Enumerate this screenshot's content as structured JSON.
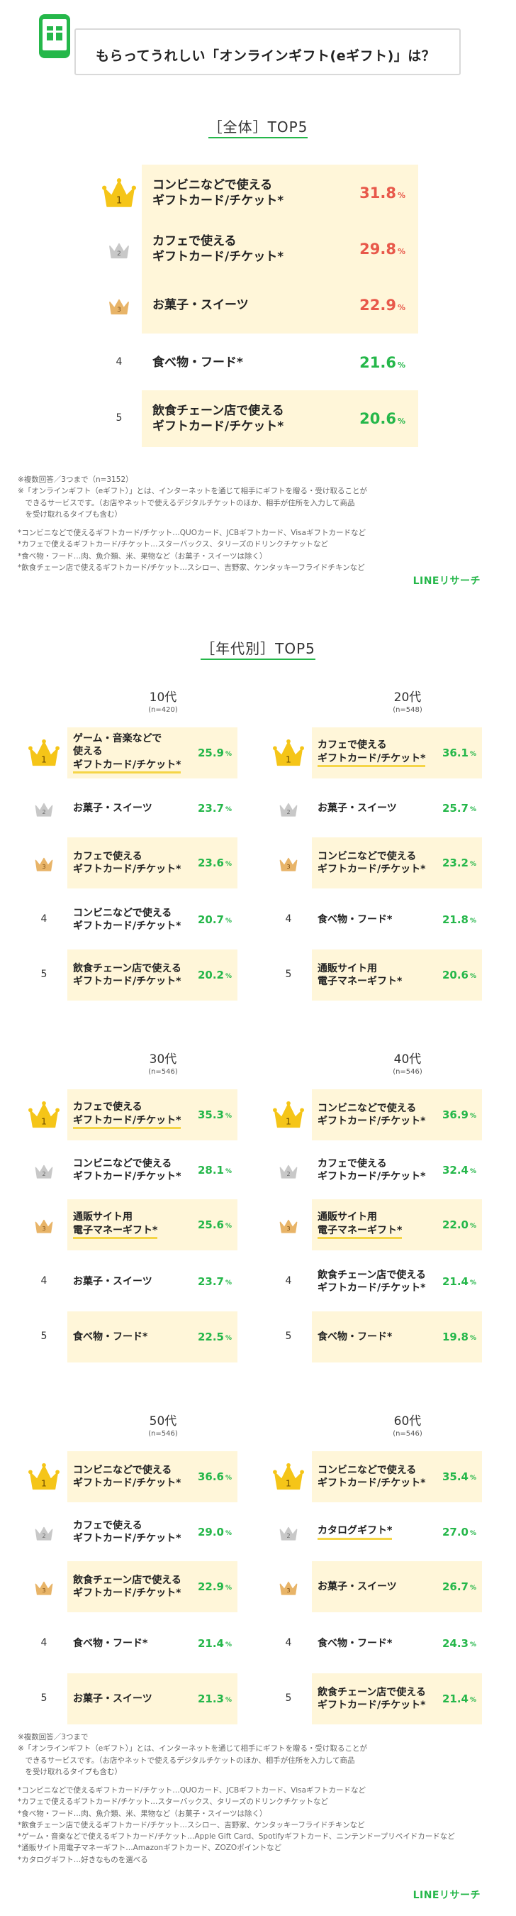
{
  "header": {
    "title": "もらってうれしい「オンラインギフト(eギフト)」は？"
  },
  "colors": {
    "accent_green": "#25b74a",
    "value_red": "#e8584a",
    "value_green": "#25b74a",
    "row_bg": "#fff6d9",
    "gold": "#f5c518",
    "silver": "#c8c8c8",
    "bronze": "#e8b468"
  },
  "overall": {
    "title": "［全体］TOP5",
    "rows": [
      {
        "rank": "1",
        "label": "コンビニなどで使える\nギフトカード/チケット*",
        "value": "31.8",
        "unit": "%"
      },
      {
        "rank": "2",
        "label": "カフェで使える\nギフトカード/チケット*",
        "value": "29.8",
        "unit": "%"
      },
      {
        "rank": "3",
        "label": "お菓子・スイーツ",
        "value": "22.9",
        "unit": "%"
      },
      {
        "rank": "4",
        "label": "食べ物・フード*",
        "value": "21.6",
        "unit": "%"
      },
      {
        "rank": "5",
        "label": "飲食チェーン店で使える\nギフトカード/チケット*",
        "value": "20.6",
        "unit": "%"
      }
    ]
  },
  "notes1": [
    "※複数回答／3つまで（n=3152）",
    "※「オンラインギフト（eギフト）」とは、インターネットを通じて相手にギフトを贈る・受け取ることが\n　できるサービスです。（お店やネットで使えるデジタルチケットのほか、相手が住所を入力して商品\n　を受け取れるタイプも含む）",
    "*コンビニなどで使えるギフトカード/チケット…QUOカード、JCBギフトカード、Visaギフトカードなど\n*カフェで使えるギフトカード/チケット…スターバックス、タリーズのドリンクチケットなど\n*食べ物・フード…肉、魚介類、米、果物など（お菓子・スイーツは除く）\n*飲食チェーン店で使えるギフトカード/チケット…スシロー、吉野家、ケンタッキーフライドチキンなど"
  ],
  "brand": "LINEリサーチ",
  "by_age": {
    "title": "［年代別］TOP5",
    "groups": [
      {
        "age": "10代",
        "n": "(n=420)",
        "rows": [
          {
            "rank": "1",
            "label": "ゲーム・音楽などで\n使える\nギフトカード/チケット*",
            "value": "25.9",
            "unit": "%"
          },
          {
            "rank": "2",
            "label": "お菓子・スイーツ",
            "value": "23.7",
            "unit": "%"
          },
          {
            "rank": "3",
            "label": "カフェで使える\nギフトカード/チケット*",
            "value": "23.6",
            "unit": "%"
          },
          {
            "rank": "4",
            "label": "コンビニなどで使える\nギフトカード/チケット*",
            "value": "20.7",
            "unit": "%"
          },
          {
            "rank": "5",
            "label": "飲食チェーン店で使える\nギフトカード/チケット*",
            "value": "20.2",
            "unit": "%"
          }
        ]
      },
      {
        "age": "20代",
        "n": "(n=548)",
        "rows": [
          {
            "rank": "1",
            "label": "カフェで使える\nギフトカード/チケット*",
            "value": "36.1",
            "unit": "%"
          },
          {
            "rank": "2",
            "label": "お菓子・スイーツ",
            "value": "25.7",
            "unit": "%"
          },
          {
            "rank": "3",
            "label": "コンビニなどで使える\nギフトカード/チケット*",
            "value": "23.2",
            "unit": "%"
          },
          {
            "rank": "4",
            "label": "食べ物・フード*",
            "value": "21.8",
            "unit": "%"
          },
          {
            "rank": "5",
            "label": "通販サイト用\n電子マネーギフト*",
            "value": "20.6",
            "unit": "%"
          }
        ]
      },
      {
        "age": "30代",
        "n": "(n=546)",
        "rows": [
          {
            "rank": "1",
            "label": "カフェで使える\nギフトカード/チケット*",
            "value": "35.3",
            "unit": "%"
          },
          {
            "rank": "2",
            "label": "コンビニなどで使える\nギフトカード/チケット*",
            "value": "28.1",
            "unit": "%"
          },
          {
            "rank": "3",
            "label": "通販サイト用\n電子マネーギフト*",
            "value": "25.6",
            "unit": "%"
          },
          {
            "rank": "4",
            "label": "お菓子・スイーツ",
            "value": "23.7",
            "unit": "%"
          },
          {
            "rank": "5",
            "label": "食べ物・フード*",
            "value": "22.5",
            "unit": "%"
          }
        ]
      },
      {
        "age": "40代",
        "n": "(n=546)",
        "rows": [
          {
            "rank": "1",
            "label": "コンビニなどで使える\nギフトカード/チケット*",
            "value": "36.9",
            "unit": "%"
          },
          {
            "rank": "2",
            "label": "カフェで使える\nギフトカード/チケット*",
            "value": "32.4",
            "unit": "%"
          },
          {
            "rank": "3",
            "label": "通販サイト用\n電子マネーギフト*",
            "value": "22.0",
            "unit": "%"
          },
          {
            "rank": "4",
            "label": "飲食チェーン店で使える\nギフトカード/チケット*",
            "value": "21.4",
            "unit": "%"
          },
          {
            "rank": "5",
            "label": "食べ物・フード*",
            "value": "19.8",
            "unit": "%"
          }
        ]
      },
      {
        "age": "50代",
        "n": "(n=546)",
        "rows": [
          {
            "rank": "1",
            "label": "コンビニなどで使える\nギフトカード/チケット*",
            "value": "36.6",
            "unit": "%"
          },
          {
            "rank": "2",
            "label": "カフェで使える\nギフトカード/チケット*",
            "value": "29.0",
            "unit": "%"
          },
          {
            "rank": "3",
            "label": "飲食チェーン店で使える\nギフトカード/チケット*",
            "value": "22.9",
            "unit": "%"
          },
          {
            "rank": "4",
            "label": "食べ物・フード*",
            "value": "21.4",
            "unit": "%"
          },
          {
            "rank": "5",
            "label": "お菓子・スイーツ",
            "value": "21.3",
            "unit": "%"
          }
        ]
      },
      {
        "age": "60代",
        "n": "(n=546)",
        "rows": [
          {
            "rank": "1",
            "label": "コンビニなどで使える\nギフトカード/チケット*",
            "value": "35.4",
            "unit": "%"
          },
          {
            "rank": "2",
            "label": "カタログギフト*",
            "value": "27.0",
            "unit": "%"
          },
          {
            "rank": "3",
            "label": "お菓子・スイーツ",
            "value": "26.7",
            "unit": "%"
          },
          {
            "rank": "4",
            "label": "食べ物・フード*",
            "value": "24.3",
            "unit": "%"
          },
          {
            "rank": "5",
            "label": "飲食チェーン店で使える\nギフトカード/チケット*",
            "value": "21.4",
            "unit": "%"
          }
        ]
      }
    ]
  },
  "notes2": [
    "※複数回答／3つまで",
    "※「オンラインギフト（eギフト）」とは、インターネットを通じて相手にギフトを贈る・受け取ることが\n　できるサービスです。（お店やネットで使えるデジタルチケットのほか、相手が住所を入力して商品\n　を受け取れるタイプも含む）",
    "*コンビニなどで使えるギフトカード/チケット…QUOカード、JCBギフトカード、Visaギフトカードなど\n*カフェで使えるギフトカード/チケット…スターバックス、タリーズのドリンクチケットなど\n*食べ物・フード…肉、魚介類、米、果物など（お菓子・スイーツは除く）\n*飲食チェーン店で使えるギフトカード/チケット…スシロー、吉野家、ケンタッキーフライドチキンなど\n*ゲーム・音楽などで使えるギフトカード/チケット…Apple Gift Card、Spotifyギフトカード、ニンテンドープリペイドカードなど\n*通販サイト用電子マネーギフト…Amazonギフトカード、ZOZOポイントなど\n*カタログギフト…好きなものを選べる"
  ],
  "chart_data": [
    {
      "type": "table",
      "title": "［全体］TOP5",
      "categories": [
        "コンビニなどで使えるギフトカード/チケット*",
        "カフェで使えるギフトカード/チケット*",
        "お菓子・スイーツ",
        "食べ物・フード*",
        "飲食チェーン店で使えるギフトカード/チケット*"
      ],
      "values": [
        31.8,
        29.8,
        22.9,
        21.6,
        20.6
      ]
    },
    {
      "type": "table",
      "title": "10代",
      "categories": [
        "ゲーム・音楽などで使えるギフトカード/チケット*",
        "お菓子・スイーツ",
        "カフェで使えるギフトカード/チケット*",
        "コンビニなどで使えるギフトカード/チケット*",
        "飲食チェーン店で使えるギフトカード/チケット*"
      ],
      "values": [
        25.9,
        23.7,
        23.6,
        20.7,
        20.2
      ]
    },
    {
      "type": "table",
      "title": "20代",
      "categories": [
        "カフェで使えるギフトカード/チケット*",
        "お菓子・スイーツ",
        "コンビニなどで使えるギフトカード/チケット*",
        "食べ物・フード*",
        "通販サイト用電子マネーギフト*"
      ],
      "values": [
        36.1,
        25.7,
        23.2,
        21.8,
        20.6
      ]
    },
    {
      "type": "table",
      "title": "30代",
      "categories": [
        "カフェで使えるギフトカード/チケット*",
        "コンビニなどで使えるギフトカード/チケット*",
        "通販サイト用電子マネーギフト*",
        "お菓子・スイーツ",
        "食べ物・フード*"
      ],
      "values": [
        35.3,
        28.1,
        25.6,
        23.7,
        22.5
      ]
    },
    {
      "type": "table",
      "title": "40代",
      "categories": [
        "コンビニなどで使えるギフトカード/チケット*",
        "カフェで使えるギフトカード/チケット*",
        "通販サイト用電子マネーギフト*",
        "飲食チェーン店で使えるギフトカード/チケット*",
        "食べ物・フード*"
      ],
      "values": [
        36.9,
        32.4,
        22.0,
        21.4,
        19.8
      ]
    },
    {
      "type": "table",
      "title": "50代",
      "categories": [
        "コンビニなどで使えるギフトカード/チケット*",
        "カフェで使えるギフトカード/チケット*",
        "飲食チェーン店で使えるギフトカード/チケット*",
        "食べ物・フード*",
        "お菓子・スイーツ"
      ],
      "values": [
        36.6,
        29.0,
        22.9,
        21.4,
        21.3
      ]
    },
    {
      "type": "table",
      "title": "60代",
      "categories": [
        "コンビニなどで使えるギフトカード/チケット*",
        "カタログギフト*",
        "お菓子・スイーツ",
        "食べ物・フード*",
        "飲食チェーン店で使えるギフトカード/チケット*"
      ],
      "values": [
        35.4,
        27.0,
        26.7,
        24.3,
        21.4
      ]
    }
  ]
}
